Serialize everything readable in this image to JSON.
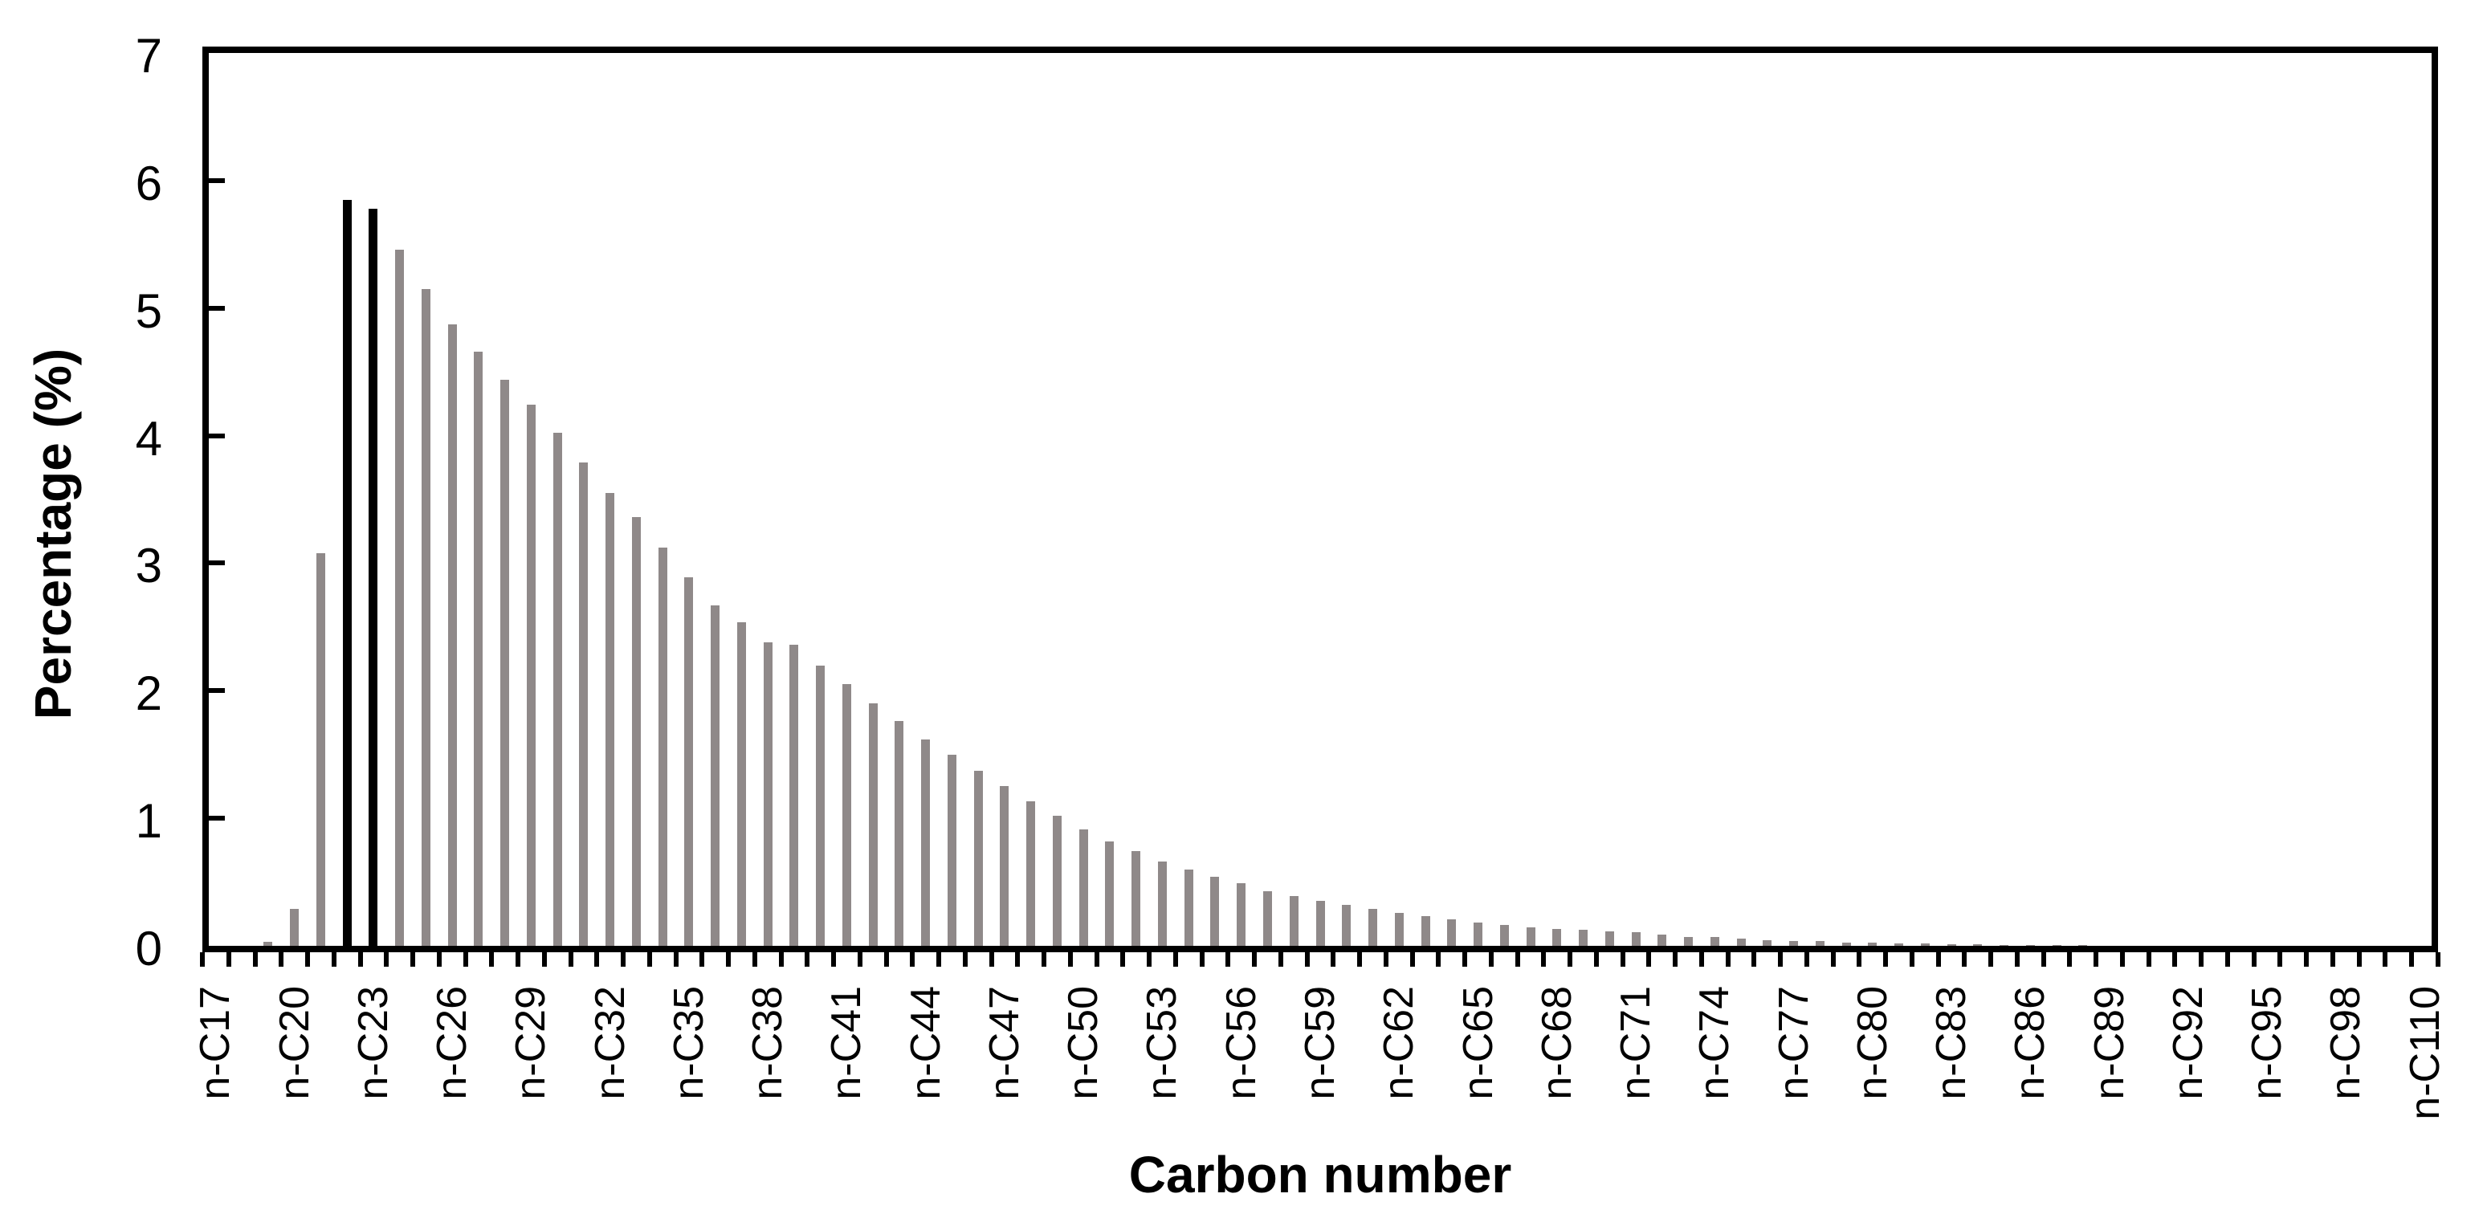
{
  "figure": {
    "background": "#FFFFFF",
    "axis_color": "#000000"
  },
  "chart_data": {
    "type": "bar",
    "title": "",
    "xlabel": "Carbon number",
    "ylabel": "Percentage (%)",
    "ylim": [
      0,
      7
    ],
    "y_tick_labels": [
      "0",
      "1",
      "2",
      "3",
      "4",
      "5",
      "6",
      "7"
    ],
    "x_tick_labels_shown_every": 3,
    "grid": false,
    "legend": "none",
    "bar_color_default": "#8F8989",
    "bar_color_highlight": "#000000",
    "highlighted_categories": [
      "n-C22",
      "n-C23"
    ],
    "categories": [
      "n-C17",
      "n-C18",
      "n-C19",
      "n-C20",
      "n-C21",
      "n-C22",
      "n-C23",
      "n-C24",
      "n-C25",
      "n-C26",
      "n-C27",
      "n-C28",
      "n-C29",
      "n-C30",
      "n-C31",
      "n-C32",
      "n-C33",
      "n-C34",
      "n-C35",
      "n-C36",
      "n-C37",
      "n-C38",
      "n-C39",
      "n-C40",
      "n-C41",
      "n-C42",
      "n-C43",
      "n-C44",
      "n-C45",
      "n-C46",
      "n-C47",
      "n-C48",
      "n-C49",
      "n-C50",
      "n-C51",
      "n-C52",
      "n-C53",
      "n-C54",
      "n-C55",
      "n-C56",
      "n-C57",
      "n-C58",
      "n-C59",
      "n-C60",
      "n-C61",
      "n-C62",
      "n-C63",
      "n-C64",
      "n-C65",
      "n-C66",
      "n-C67",
      "n-C68",
      "n-C69",
      "n-C70",
      "n-C71",
      "n-C72",
      "n-C73",
      "n-C74",
      "n-C75",
      "n-C76",
      "n-C77",
      "n-C78",
      "n-C79",
      "n-C80",
      "n-C81",
      "n-C82",
      "n-C83",
      "n-C84",
      "n-C85",
      "n-C86",
      "n-C87",
      "n-C88",
      "n-C89",
      "n-C90",
      "n-C91",
      "n-C92",
      "n-C93",
      "n-C94",
      "n-C95",
      "n-C96",
      "n-C97",
      "n-C98",
      "n-C99",
      "n-C100",
      "n-C110"
    ],
    "values": [
      0,
      0,
      0.03,
      0.29,
      3.08,
      5.85,
      5.78,
      5.46,
      5.15,
      4.87,
      4.66,
      4.44,
      4.24,
      4.02,
      3.79,
      3.55,
      3.36,
      3.12,
      2.89,
      2.67,
      2.54,
      2.38,
      2.36,
      2.2,
      2.05,
      1.9,
      1.76,
      1.62,
      1.5,
      1.37,
      1.25,
      1.13,
      1.02,
      0.91,
      0.82,
      0.74,
      0.66,
      0.6,
      0.54,
      0.49,
      0.43,
      0.39,
      0.35,
      0.32,
      0.29,
      0.26,
      0.23,
      0.21,
      0.18,
      0.165,
      0.145,
      0.135,
      0.124,
      0.114,
      0.107,
      0.087,
      0.072,
      0.068,
      0.056,
      0.046,
      0.04,
      0.037,
      0.028,
      0.025,
      0.021,
      0.018,
      0.014,
      0.01,
      0.008,
      0.006,
      0.005,
      0.004,
      0.003,
      0.003,
      0.002,
      0.002,
      0.001,
      0.001,
      0.001,
      0,
      0,
      0,
      0,
      0,
      0
    ]
  }
}
